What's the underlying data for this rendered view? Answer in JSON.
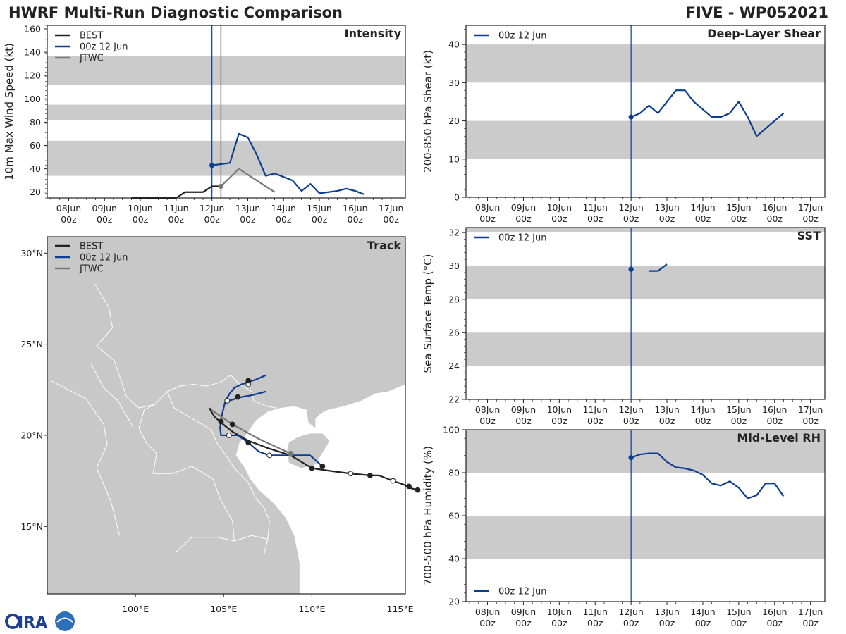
{
  "header": {
    "title": "HWRF Multi-Run Diagnostic Comparison",
    "storm": "FIVE - WP052021"
  },
  "colors": {
    "best": "#222222",
    "run": "#0b3d91",
    "jtwc": "#777777",
    "band": "#cbcbcb",
    "land": "#c8c8c8"
  },
  "time_axis": {
    "day_labels": [
      "08Jun",
      "09Jun",
      "10Jun",
      "11Jun",
      "12Jun",
      "13Jun",
      "14Jun",
      "15Jun",
      "16Jun",
      "17Jun"
    ],
    "hour_label": "00z",
    "day_values": [
      8,
      9,
      10,
      11,
      12,
      13,
      14,
      15,
      16,
      17
    ],
    "range": [
      7.4,
      17.4
    ],
    "init_marker": 12.0
  },
  "chart_data": [
    {
      "id": "intensity",
      "type": "line",
      "title": "Intensity",
      "ylabel": "10m Max Wind Speed (kt)",
      "ylim": [
        15,
        163
      ],
      "yticks": [
        20,
        40,
        60,
        80,
        100,
        120,
        140,
        160
      ],
      "bands": [
        [
          34,
          64
        ],
        [
          82,
          95
        ],
        [
          112,
          137
        ]
      ],
      "legend": [
        "BEST",
        "00z 12 Jun",
        "JTWC"
      ],
      "series": [
        {
          "name": "BEST",
          "x": [
            9.75,
            10.0,
            10.25,
            10.5,
            10.75,
            11.0,
            11.25,
            11.5,
            11.75,
            12.0,
            12.25
          ],
          "y": [
            15,
            15,
            15,
            15,
            15,
            15,
            20,
            20,
            20,
            25,
            25
          ]
        },
        {
          "name": "00z 12 Jun",
          "x": [
            12.0,
            12.5,
            12.75,
            13.0,
            13.25,
            13.5,
            13.75,
            14.0,
            14.25,
            14.5,
            14.75,
            15.0,
            15.25,
            15.5,
            15.75,
            16.0,
            16.25
          ],
          "y": [
            43,
            45,
            70,
            67,
            52,
            34,
            36,
            33,
            30,
            21,
            27,
            19,
            20,
            21,
            23,
            21,
            18
          ]
        },
        {
          "name": "JTWC",
          "x": [
            12.25,
            12.75,
            13.75
          ],
          "y": [
            25,
            40,
            20
          ]
        }
      ]
    },
    {
      "id": "shear",
      "type": "line",
      "title": "Deep-Layer Shear",
      "ylabel": "200-850 hPa Shear (kt)",
      "ylim": [
        0,
        45
      ],
      "yticks": [
        0,
        10,
        20,
        30,
        40
      ],
      "bands": [
        [
          10,
          20
        ],
        [
          30,
          40
        ]
      ],
      "legend": [
        "00z 12 Jun"
      ],
      "series": [
        {
          "name": "00z 12 Jun",
          "x": [
            12.0,
            12.25,
            12.5,
            12.75,
            13.0,
            13.25,
            13.5,
            13.75,
            14.0,
            14.25,
            14.5,
            14.75,
            15.0,
            15.25,
            15.5,
            15.75,
            16.0,
            16.25
          ],
          "y": [
            21,
            22,
            24,
            22,
            25,
            28,
            28,
            25,
            23,
            21,
            21,
            22,
            25,
            21,
            16,
            18,
            20,
            22
          ]
        }
      ]
    },
    {
      "id": "sst",
      "type": "line",
      "title": "SST",
      "ylabel": "Sea Surface Temp (°C)",
      "ylim": [
        22,
        32.3
      ],
      "yticks": [
        22,
        24,
        26,
        28,
        30,
        32
      ],
      "bands": [
        [
          24,
          26
        ],
        [
          28,
          30
        ],
        [
          32,
          32.3
        ]
      ],
      "legend": [
        "00z 12 Jun"
      ],
      "series": [
        {
          "name": "00z 12 Jun",
          "x": [
            12.0
          ],
          "y": [
            29.8
          ]
        },
        {
          "name": "00z 12 Jun segment",
          "x": [
            12.5,
            12.75,
            13.0
          ],
          "y": [
            29.7,
            29.7,
            30.1
          ]
        }
      ]
    },
    {
      "id": "rh",
      "type": "line",
      "title": "Mid-Level RH",
      "ylabel": "700-500 hPa Humidity (%)",
      "ylim": [
        20,
        100
      ],
      "yticks": [
        20,
        40,
        60,
        80,
        100
      ],
      "bands": [
        [
          40,
          60
        ],
        [
          80,
          100
        ]
      ],
      "legend": [
        "00z 12 Jun"
      ],
      "series": [
        {
          "name": "00z 12 Jun",
          "x": [
            12.0,
            12.25,
            12.5,
            12.75,
            13.0,
            13.25,
            13.5,
            13.75,
            14.0,
            14.25,
            14.5,
            14.75,
            15.0,
            15.25,
            15.5,
            15.75,
            16.0,
            16.25
          ],
          "y": [
            87,
            88.5,
            89,
            89,
            85,
            82.5,
            82,
            81,
            79,
            75,
            74,
            76,
            73,
            68,
            69.5,
            75,
            75,
            69
          ]
        }
      ]
    },
    {
      "id": "track",
      "type": "scatter",
      "title": "Track",
      "xlim": [
        95,
        115.3
      ],
      "ylim": [
        11.3,
        30.9
      ],
      "xticks": [
        100,
        105,
        110,
        115
      ],
      "xtick_labels": [
        "100°E",
        "105°E",
        "110°E",
        "115°E"
      ],
      "yticks": [
        15,
        20,
        25,
        30
      ],
      "ytick_labels": [
        "15°N",
        "20°N",
        "25°N",
        "30°N"
      ],
      "legend": [
        "BEST",
        "00z 12 Jun",
        "JTWC"
      ],
      "series": [
        {
          "name": "BEST",
          "lon": [
            116.0,
            115.6,
            115.2,
            114.6,
            113.8,
            113.3,
            112.2,
            111.0,
            110.0,
            108.8,
            107.5,
            106.4,
            105.5,
            105.1,
            104.8,
            104.5,
            104.3,
            104.2
          ],
          "lat": [
            17.0,
            17.1,
            17.3,
            17.5,
            17.8,
            17.8,
            17.9,
            18.05,
            18.2,
            18.9,
            19.3,
            19.7,
            20.2,
            20.5,
            20.75,
            21.0,
            21.3,
            21.5
          ],
          "markers": [
            [
              116.0,
              17.0,
              1
            ],
            [
              115.5,
              17.2,
              1
            ],
            [
              114.6,
              17.5,
              0
            ],
            [
              113.3,
              17.8,
              1
            ],
            [
              112.2,
              17.9,
              0
            ],
            [
              110.0,
              18.2,
              1
            ],
            [
              105.5,
              20.6,
              1
            ]
          ]
        },
        {
          "name": "00z 12 Jun",
          "lon": [
            110.6,
            109.9,
            108.8,
            107.6,
            107.0,
            106.4,
            105.8,
            105.3,
            104.85,
            104.8,
            104.85,
            105.1,
            105.35,
            105.6,
            105.9,
            106.3,
            106.8,
            107.4
          ],
          "lat": [
            18.3,
            18.9,
            18.9,
            18.9,
            19.1,
            19.6,
            20.0,
            20.0,
            20.0,
            20.4,
            20.9,
            21.9,
            22.3,
            22.6,
            22.75,
            22.9,
            23.05,
            23.3
          ],
          "markers": [
            [
              110.6,
              18.3,
              1
            ],
            [
              107.6,
              18.9,
              0
            ],
            [
              106.4,
              19.6,
              1
            ],
            [
              105.3,
              20.0,
              0
            ],
            [
              104.85,
              20.75,
              1
            ],
            [
              105.2,
              21.9,
              0
            ],
            [
              106.4,
              22.8,
              0
            ],
            [
              106.4,
              23.0,
              1
            ]
          ]
        },
        {
          "name": "00z 12 Jun branch",
          "lon": [
            105.3,
            106.0,
            106.6,
            107.4
          ],
          "lat": [
            21.9,
            22.1,
            22.2,
            22.4
          ],
          "markers": [
            [
              105.8,
              22.1,
              1
            ]
          ]
        },
        {
          "name": "JTWC",
          "lon": [
            108.8,
            107.0,
            105.5,
            104.3
          ],
          "lat": [
            19.0,
            19.8,
            20.6,
            21.4
          ],
          "markers": [
            [
              108.8,
              19.0,
              2
            ]
          ]
        }
      ]
    }
  ]
}
